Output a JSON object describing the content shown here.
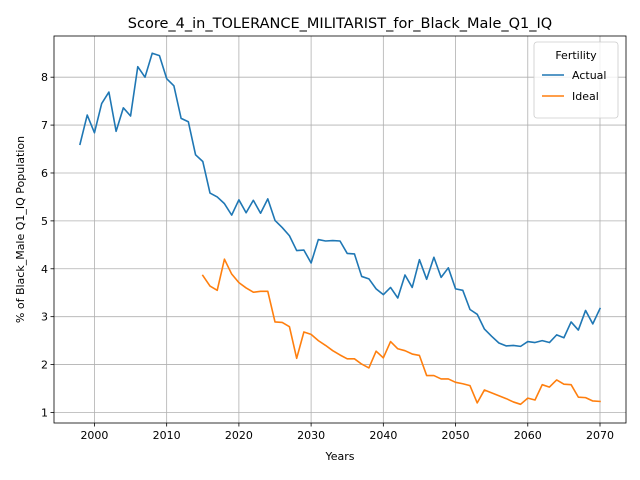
{
  "chart_data": {
    "type": "line",
    "title": "Score_4_in_TOLERANCE_MILITARIST_for_Black_Male_Q1_IQ",
    "xlabel": "Years",
    "ylabel": "% of Black_Male Q1_IQ Population",
    "xlim": [
      1994.4,
      2073.6
    ],
    "ylim": [
      0.78,
      8.86
    ],
    "xticks": [
      2000,
      2010,
      2020,
      2030,
      2040,
      2050,
      2060,
      2070
    ],
    "yticks": [
      1,
      2,
      3,
      4,
      5,
      6,
      7,
      8
    ],
    "grid": true,
    "legend": {
      "title": "Fertility",
      "placement": "top-right"
    },
    "series": [
      {
        "name": "Actual",
        "color": "#1f77b4",
        "x": [
          1998,
          1999,
          2000,
          2001,
          2002,
          2003,
          2004,
          2005,
          2006,
          2007,
          2008,
          2009,
          2010,
          2011,
          2012,
          2013,
          2014,
          2015,
          2016,
          2017,
          2018,
          2019,
          2020,
          2021,
          2022,
          2023,
          2024,
          2025,
          2026,
          2027,
          2028,
          2029,
          2030,
          2031,
          2032,
          2033,
          2034,
          2035,
          2036,
          2037,
          2038,
          2039,
          2040,
          2041,
          2042,
          2043,
          2044,
          2045,
          2046,
          2047,
          2048,
          2049,
          2050,
          2051,
          2052,
          2053,
          2054,
          2055,
          2056,
          2057,
          2058,
          2059,
          2060,
          2061,
          2062,
          2063,
          2064,
          2065,
          2066,
          2067,
          2068,
          2069,
          2070
        ],
        "y": [
          6.6,
          7.21,
          6.84,
          7.45,
          7.69,
          6.87,
          7.36,
          7.19,
          8.22,
          8.0,
          8.5,
          8.45,
          7.97,
          7.82,
          7.14,
          7.07,
          6.38,
          6.24,
          5.58,
          5.5,
          5.36,
          5.12,
          5.44,
          5.17,
          5.43,
          5.16,
          5.46,
          5.01,
          4.86,
          4.69,
          4.38,
          4.39,
          4.12,
          4.61,
          4.58,
          4.59,
          4.58,
          4.32,
          4.31,
          3.84,
          3.79,
          3.58,
          3.46,
          3.61,
          3.39,
          3.87,
          3.61,
          4.19,
          3.78,
          4.24,
          3.82,
          4.02,
          3.58,
          3.55,
          3.15,
          3.05,
          2.74,
          2.59,
          2.45,
          2.39,
          2.4,
          2.38,
          2.48,
          2.46,
          2.5,
          2.46,
          2.62,
          2.56,
          2.89,
          2.72,
          3.13,
          2.85,
          3.17
        ]
      },
      {
        "name": "Ideal",
        "color": "#ff7f0e",
        "x": [
          2015,
          2016,
          2017,
          2018,
          2019,
          2020,
          2021,
          2022,
          2023,
          2024,
          2025,
          2026,
          2027,
          2028,
          2029,
          2030,
          2031,
          2032,
          2033,
          2034,
          2035,
          2036,
          2037,
          2038,
          2039,
          2040,
          2041,
          2042,
          2043,
          2044,
          2045,
          2046,
          2047,
          2048,
          2049,
          2050,
          2051,
          2052,
          2053,
          2054,
          2055,
          2056,
          2057,
          2058,
          2059,
          2060,
          2061,
          2062,
          2063,
          2064,
          2065,
          2066,
          2067,
          2068,
          2069,
          2070
        ],
        "y": [
          3.86,
          3.64,
          3.55,
          4.2,
          3.89,
          3.71,
          3.6,
          3.51,
          3.53,
          3.53,
          2.89,
          2.88,
          2.79,
          2.13,
          2.68,
          2.63,
          2.5,
          2.4,
          2.29,
          2.2,
          2.12,
          2.12,
          2.01,
          1.93,
          2.28,
          2.14,
          2.48,
          2.33,
          2.29,
          2.22,
          2.19,
          1.77,
          1.77,
          1.7,
          1.7,
          1.63,
          1.6,
          1.56,
          1.2,
          1.47,
          1.41,
          1.35,
          1.29,
          1.22,
          1.17,
          1.3,
          1.26,
          1.58,
          1.53,
          1.68,
          1.59,
          1.58,
          1.32,
          1.31,
          1.24,
          1.23
        ]
      }
    ]
  }
}
